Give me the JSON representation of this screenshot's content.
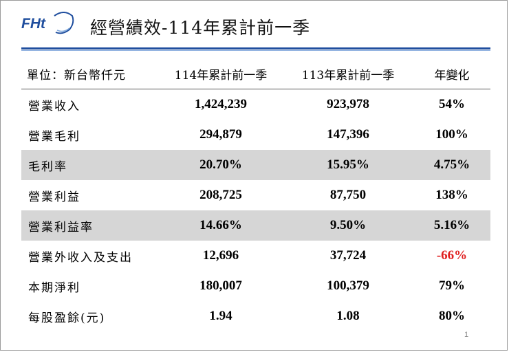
{
  "header": {
    "logo_text": "FHt",
    "title": "經營績效-114年累計前一季"
  },
  "colors": {
    "brand_blue": "#1f4e9e",
    "shade_row": "#d6d6d6",
    "negative": "#e02020"
  },
  "table": {
    "headers": [
      "單位：新台幣仟元",
      "114年累計前一季",
      "113年累計前一季",
      "年變化"
    ],
    "rows": [
      {
        "label": "營業收入",
        "cur": "1,424,239",
        "prev": "923,978",
        "change": "54%"
      },
      {
        "label": "營業毛利",
        "cur": "294,879",
        "prev": "147,396",
        "change": "100%"
      },
      {
        "label": "毛利率",
        "cur": "20.70%",
        "prev": "15.95%",
        "change": "4.75%"
      },
      {
        "label": "營業利益",
        "cur": "208,725",
        "prev": "87,750",
        "change": "138%"
      },
      {
        "label": "營業利益率",
        "cur": "14.66%",
        "prev": "9.50%",
        "change": "5.16%"
      },
      {
        "label": "營業外收入及支出",
        "cur": "12,696",
        "prev": "37,724",
        "change": "-66%"
      },
      {
        "label": "本期淨利",
        "cur": "180,007",
        "prev": "100,379",
        "change": "79%"
      },
      {
        "label": "每股盈餘(元)",
        "cur": "1.94",
        "prev": "1.08",
        "change": "80%"
      }
    ]
  },
  "footer": {
    "page_number": "1"
  }
}
